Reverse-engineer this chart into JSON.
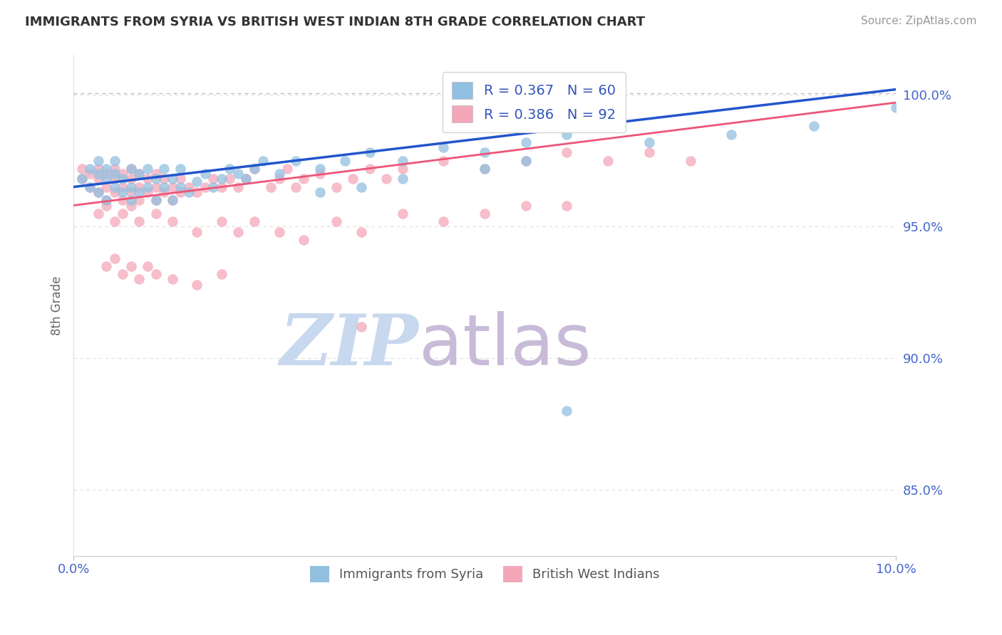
{
  "title": "IMMIGRANTS FROM SYRIA VS BRITISH WEST INDIAN 8TH GRADE CORRELATION CHART",
  "source_text": "Source: ZipAtlas.com",
  "ylabel": "8th Grade",
  "y_ticks_labels": [
    "85.0%",
    "90.0%",
    "95.0%",
    "100.0%"
  ],
  "y_tick_vals": [
    0.85,
    0.9,
    0.95,
    1.0
  ],
  "x_lim": [
    0.0,
    0.1
  ],
  "y_lim": [
    0.825,
    1.015
  ],
  "legend_R1": "R = 0.367",
  "legend_N1": "N = 60",
  "legend_R2": "R = 0.386",
  "legend_N2": "N = 92",
  "color_syria": "#92c0e0",
  "color_bwi": "#f4a7b9",
  "trend_color_syria": "#2255cc",
  "trend_color_bwi": "#ee5577",
  "watermark_zip": "ZIP",
  "watermark_atlas": "atlas",
  "watermark_color_zip": "#c8d8ee",
  "watermark_color_atlas": "#c8bbd8",
  "syria_x": [
    0.001,
    0.002,
    0.002,
    0.003,
    0.003,
    0.003,
    0.004,
    0.004,
    0.004,
    0.005,
    0.005,
    0.005,
    0.006,
    0.006,
    0.007,
    0.007,
    0.007,
    0.008,
    0.008,
    0.009,
    0.009,
    0.01,
    0.01,
    0.011,
    0.011,
    0.012,
    0.012,
    0.013,
    0.013,
    0.014,
    0.015,
    0.016,
    0.017,
    0.018,
    0.019,
    0.02,
    0.021,
    0.022,
    0.023,
    0.025,
    0.027,
    0.03,
    0.033,
    0.036,
    0.04,
    0.045,
    0.05,
    0.055,
    0.06,
    0.065,
    0.03,
    0.035,
    0.04,
    0.05,
    0.055,
    0.06,
    0.07,
    0.08,
    0.09,
    0.1
  ],
  "syria_y": [
    0.968,
    0.965,
    0.972,
    0.963,
    0.97,
    0.975,
    0.968,
    0.972,
    0.96,
    0.965,
    0.97,
    0.975,
    0.963,
    0.968,
    0.96,
    0.965,
    0.972,
    0.963,
    0.97,
    0.965,
    0.972,
    0.96,
    0.968,
    0.965,
    0.972,
    0.96,
    0.968,
    0.965,
    0.972,
    0.963,
    0.967,
    0.97,
    0.965,
    0.968,
    0.972,
    0.97,
    0.968,
    0.972,
    0.975,
    0.97,
    0.975,
    0.972,
    0.975,
    0.978,
    0.975,
    0.98,
    0.978,
    0.982,
    0.985,
    0.988,
    0.963,
    0.965,
    0.968,
    0.972,
    0.975,
    0.88,
    0.982,
    0.985,
    0.988,
    0.995
  ],
  "bwi_x": [
    0.001,
    0.001,
    0.002,
    0.002,
    0.003,
    0.003,
    0.003,
    0.004,
    0.004,
    0.004,
    0.005,
    0.005,
    0.005,
    0.006,
    0.006,
    0.006,
    0.007,
    0.007,
    0.007,
    0.008,
    0.008,
    0.008,
    0.009,
    0.009,
    0.01,
    0.01,
    0.01,
    0.011,
    0.011,
    0.012,
    0.012,
    0.013,
    0.013,
    0.014,
    0.015,
    0.016,
    0.017,
    0.018,
    0.019,
    0.02,
    0.021,
    0.022,
    0.024,
    0.025,
    0.026,
    0.027,
    0.028,
    0.03,
    0.032,
    0.034,
    0.036,
    0.038,
    0.04,
    0.045,
    0.05,
    0.055,
    0.06,
    0.065,
    0.07,
    0.075,
    0.003,
    0.004,
    0.005,
    0.006,
    0.007,
    0.008,
    0.01,
    0.012,
    0.015,
    0.018,
    0.02,
    0.022,
    0.025,
    0.028,
    0.032,
    0.035,
    0.04,
    0.045,
    0.05,
    0.055,
    0.004,
    0.005,
    0.006,
    0.007,
    0.008,
    0.009,
    0.01,
    0.012,
    0.015,
    0.018,
    0.035,
    0.06
  ],
  "bwi_y": [
    0.968,
    0.972,
    0.965,
    0.97,
    0.963,
    0.968,
    0.972,
    0.96,
    0.965,
    0.97,
    0.963,
    0.968,
    0.972,
    0.96,
    0.965,
    0.97,
    0.963,
    0.968,
    0.972,
    0.96,
    0.965,
    0.97,
    0.963,
    0.968,
    0.96,
    0.965,
    0.97,
    0.963,
    0.968,
    0.96,
    0.965,
    0.963,
    0.968,
    0.965,
    0.963,
    0.965,
    0.968,
    0.965,
    0.968,
    0.965,
    0.968,
    0.972,
    0.965,
    0.968,
    0.972,
    0.965,
    0.968,
    0.97,
    0.965,
    0.968,
    0.972,
    0.968,
    0.972,
    0.975,
    0.972,
    0.975,
    0.978,
    0.975,
    0.978,
    0.975,
    0.955,
    0.958,
    0.952,
    0.955,
    0.958,
    0.952,
    0.955,
    0.952,
    0.948,
    0.952,
    0.948,
    0.952,
    0.948,
    0.945,
    0.952,
    0.948,
    0.955,
    0.952,
    0.955,
    0.958,
    0.935,
    0.938,
    0.932,
    0.935,
    0.93,
    0.935,
    0.932,
    0.93,
    0.928,
    0.932,
    0.912,
    0.958
  ]
}
